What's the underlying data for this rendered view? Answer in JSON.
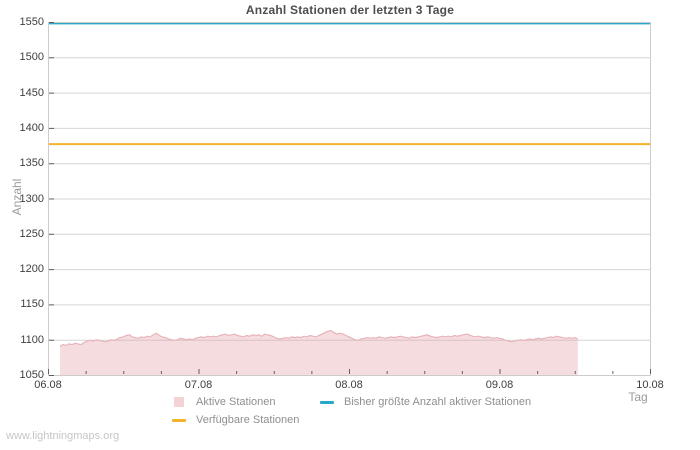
{
  "title": "Anzahl Stationen der letzten 3 Tage",
  "watermark": "www.lightningmaps.org",
  "colors": {
    "active_fill": "rgba(230,162,168,0.38)",
    "active_stroke": "#e6b4b9",
    "active_legend_swatch": "#f3d3d6",
    "max_line": "#28a8c8",
    "available_line": "#f2b32b",
    "grid": "#d6d6d6",
    "border": "#cccccc",
    "tick_mark": "#606060",
    "tick_label": "#3f3f3f",
    "axis_title": "#9a9a9a",
    "title_color": "#4d4d4d",
    "legend_text": "#8f8f8f",
    "watermark_color": "#c6c6c6"
  },
  "legend": {
    "items": [
      {
        "label": "Aktive Stationen",
        "swatch": "area",
        "color": "#f3d3d6"
      },
      {
        "label": "Bisher größte Anzahl aktiver Stationen",
        "swatch": "line",
        "color": "#28a8c8"
      },
      {
        "label": "Verfügbare Stationen",
        "swatch": "line",
        "color": "#f2b32b"
      }
    ]
  },
  "chart_data": {
    "type": "area",
    "title": "Anzahl Stationen der letzten 3 Tage",
    "xlabel": "Tag",
    "ylabel": "Anzahl",
    "xlim": [
      0,
      4
    ],
    "ylim": [
      1050,
      1550
    ],
    "grid": "horizontal-only",
    "legend_position": "bottom",
    "y_ticks": [
      1050,
      1100,
      1150,
      1200,
      1250,
      1300,
      1350,
      1400,
      1450,
      1500,
      1550
    ],
    "x_ticks": [
      {
        "t": 0,
        "label": "06.08"
      },
      {
        "t": 1,
        "label": "07.08"
      },
      {
        "t": 2,
        "label": "08.08"
      },
      {
        "t": 3,
        "label": "09.08"
      },
      {
        "t": 4,
        "label": "10.08"
      }
    ],
    "x_minor_step": 0.25,
    "series": [
      {
        "name": "Bisher größte Anzahl aktiver Stationen",
        "type": "hline",
        "value": 1548
      },
      {
        "name": "Verfügbare Stationen",
        "type": "hline",
        "value": 1377
      },
      {
        "name": "Aktive Stationen",
        "type": "area",
        "points": [
          [
            0.08,
            1091
          ],
          [
            0.1,
            1093
          ],
          [
            0.12,
            1092
          ],
          [
            0.14,
            1094
          ],
          [
            0.16,
            1093
          ],
          [
            0.18,
            1095
          ],
          [
            0.2,
            1094
          ],
          [
            0.22,
            1093
          ],
          [
            0.24,
            1096
          ],
          [
            0.26,
            1098
          ],
          [
            0.28,
            1099
          ],
          [
            0.3,
            1098
          ],
          [
            0.32,
            1100
          ],
          [
            0.34,
            1099
          ],
          [
            0.36,
            1098
          ],
          [
            0.38,
            1097
          ],
          [
            0.4,
            1098
          ],
          [
            0.42,
            1100
          ],
          [
            0.44,
            1099
          ],
          [
            0.46,
            1101
          ],
          [
            0.48,
            1103
          ],
          [
            0.5,
            1104
          ],
          [
            0.52,
            1106
          ],
          [
            0.54,
            1107
          ],
          [
            0.56,
            1104
          ],
          [
            0.58,
            1103
          ],
          [
            0.6,
            1102
          ],
          [
            0.62,
            1104
          ],
          [
            0.64,
            1103
          ],
          [
            0.66,
            1105
          ],
          [
            0.68,
            1104
          ],
          [
            0.7,
            1107
          ],
          [
            0.72,
            1109
          ],
          [
            0.74,
            1106
          ],
          [
            0.76,
            1104
          ],
          [
            0.78,
            1103
          ],
          [
            0.8,
            1101
          ],
          [
            0.82,
            1100
          ],
          [
            0.84,
            1099
          ],
          [
            0.86,
            1100
          ],
          [
            0.88,
            1102
          ],
          [
            0.9,
            1101
          ],
          [
            0.92,
            1100
          ],
          [
            0.94,
            1101
          ],
          [
            0.96,
            1100
          ],
          [
            0.98,
            1102
          ],
          [
            1.0,
            1103
          ],
          [
            1.02,
            1104
          ],
          [
            1.04,
            1103
          ],
          [
            1.06,
            1105
          ],
          [
            1.08,
            1104
          ],
          [
            1.1,
            1105
          ],
          [
            1.12,
            1104
          ],
          [
            1.14,
            1106
          ],
          [
            1.16,
            1107
          ],
          [
            1.18,
            1108
          ],
          [
            1.2,
            1106
          ],
          [
            1.22,
            1107
          ],
          [
            1.24,
            1108
          ],
          [
            1.26,
            1106
          ],
          [
            1.28,
            1105
          ],
          [
            1.3,
            1104
          ],
          [
            1.32,
            1106
          ],
          [
            1.34,
            1105
          ],
          [
            1.36,
            1107
          ],
          [
            1.38,
            1106
          ],
          [
            1.4,
            1107
          ],
          [
            1.42,
            1105
          ],
          [
            1.44,
            1108
          ],
          [
            1.46,
            1107
          ],
          [
            1.48,
            1106
          ],
          [
            1.5,
            1104
          ],
          [
            1.52,
            1102
          ],
          [
            1.54,
            1101
          ],
          [
            1.56,
            1102
          ],
          [
            1.58,
            1103
          ],
          [
            1.6,
            1102
          ],
          [
            1.62,
            1104
          ],
          [
            1.64,
            1103
          ],
          [
            1.66,
            1104
          ],
          [
            1.68,
            1103
          ],
          [
            1.7,
            1105
          ],
          [
            1.72,
            1104
          ],
          [
            1.74,
            1106
          ],
          [
            1.76,
            1105
          ],
          [
            1.78,
            1104
          ],
          [
            1.8,
            1106
          ],
          [
            1.82,
            1108
          ],
          [
            1.84,
            1110
          ],
          [
            1.86,
            1112
          ],
          [
            1.88,
            1113
          ],
          [
            1.9,
            1110
          ],
          [
            1.92,
            1108
          ],
          [
            1.94,
            1109
          ],
          [
            1.96,
            1108
          ],
          [
            1.98,
            1106
          ],
          [
            2.0,
            1104
          ],
          [
            2.02,
            1102
          ],
          [
            2.04,
            1100
          ],
          [
            2.06,
            1099
          ],
          [
            2.08,
            1101
          ],
          [
            2.1,
            1102
          ],
          [
            2.12,
            1103
          ],
          [
            2.14,
            1102
          ],
          [
            2.16,
            1103
          ],
          [
            2.18,
            1102
          ],
          [
            2.2,
            1104
          ],
          [
            2.22,
            1103
          ],
          [
            2.24,
            1102
          ],
          [
            2.26,
            1103
          ],
          [
            2.28,
            1104
          ],
          [
            2.3,
            1103
          ],
          [
            2.32,
            1104
          ],
          [
            2.34,
            1105
          ],
          [
            2.36,
            1104
          ],
          [
            2.38,
            1103
          ],
          [
            2.4,
            1102
          ],
          [
            2.42,
            1104
          ],
          [
            2.44,
            1103
          ],
          [
            2.46,
            1104
          ],
          [
            2.48,
            1105
          ],
          [
            2.5,
            1106
          ],
          [
            2.52,
            1107
          ],
          [
            2.54,
            1105
          ],
          [
            2.56,
            1104
          ],
          [
            2.58,
            1103
          ],
          [
            2.6,
            1104
          ],
          [
            2.62,
            1105
          ],
          [
            2.64,
            1104
          ],
          [
            2.66,
            1105
          ],
          [
            2.68,
            1104
          ],
          [
            2.7,
            1106
          ],
          [
            2.72,
            1105
          ],
          [
            2.74,
            1106
          ],
          [
            2.76,
            1107
          ],
          [
            2.78,
            1108
          ],
          [
            2.8,
            1107
          ],
          [
            2.82,
            1105
          ],
          [
            2.84,
            1104
          ],
          [
            2.86,
            1105
          ],
          [
            2.88,
            1104
          ],
          [
            2.9,
            1103
          ],
          [
            2.92,
            1104
          ],
          [
            2.94,
            1103
          ],
          [
            2.96,
            1102
          ],
          [
            2.98,
            1103
          ],
          [
            3.0,
            1102
          ],
          [
            3.02,
            1101
          ],
          [
            3.04,
            1099
          ],
          [
            3.06,
            1098
          ],
          [
            3.08,
            1097
          ],
          [
            3.1,
            1098
          ],
          [
            3.12,
            1099
          ],
          [
            3.14,
            1100
          ],
          [
            3.16,
            1099
          ],
          [
            3.18,
            1100
          ],
          [
            3.2,
            1101
          ],
          [
            3.22,
            1100
          ],
          [
            3.24,
            1101
          ],
          [
            3.26,
            1102
          ],
          [
            3.28,
            1101
          ],
          [
            3.3,
            1102
          ],
          [
            3.32,
            1103
          ],
          [
            3.34,
            1104
          ],
          [
            3.36,
            1103
          ],
          [
            3.38,
            1105
          ],
          [
            3.4,
            1104
          ],
          [
            3.42,
            1103
          ],
          [
            3.44,
            1102
          ],
          [
            3.46,
            1103
          ],
          [
            3.48,
            1102
          ],
          [
            3.5,
            1103
          ],
          [
            3.52,
            1101
          ]
        ]
      }
    ]
  }
}
